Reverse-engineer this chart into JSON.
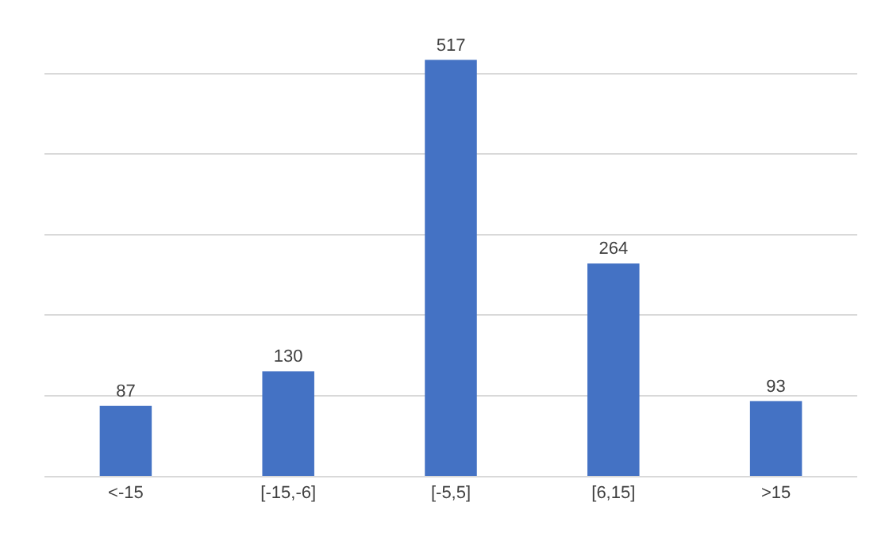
{
  "chart_data": {
    "type": "bar",
    "categories": [
      "<-15",
      "[-15,-6]",
      "[-5,5]",
      "[6,15]",
      ">15"
    ],
    "values": [
      87,
      130,
      517,
      264,
      93
    ],
    "color": "#4472c4",
    "data_labels": true,
    "grid": "y",
    "tick_labels": "x"
  }
}
